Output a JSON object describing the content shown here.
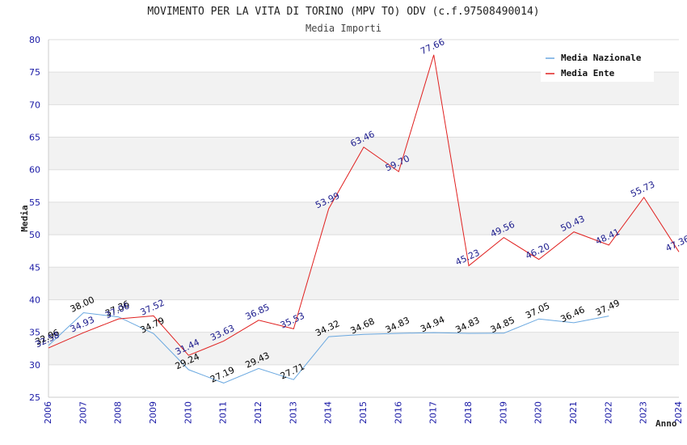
{
  "chart_data": {
    "type": "line",
    "title": "MOVIMENTO PER LA VITA DI TORINO (MPV TO) ODV (c.f.97508490014)",
    "subtitle": "Media Importi",
    "xlabel": "Anno",
    "ylabel": "Media",
    "ylim": [
      25,
      80
    ],
    "yticks": [
      "25",
      "30",
      "35",
      "40",
      "45",
      "50",
      "55",
      "60",
      "65",
      "70",
      "75",
      "80"
    ],
    "categories": [
      "2006",
      "2007",
      "2008",
      "2009",
      "2010",
      "2011",
      "2012",
      "2013",
      "2014",
      "2015",
      "2016",
      "2017",
      "2018",
      "2019",
      "2020",
      "2021",
      "2022",
      "2023",
      "2024"
    ],
    "grid": "horizontal bands",
    "legend_position": "top-right",
    "series": [
      {
        "name": "Media Nazionale",
        "color": "#6aa8e0",
        "label_color": "#000000",
        "values": [
          32.96,
          38.0,
          37.36,
          34.79,
          29.24,
          27.19,
          29.43,
          27.71,
          34.32,
          34.68,
          34.83,
          34.94,
          34.83,
          34.85,
          37.05,
          36.46,
          37.49,
          null,
          null
        ],
        "labels": [
          "32.96",
          "38.00",
          "37.36",
          "34.79",
          "29.24",
          "27.19",
          "29.43",
          "27.71",
          "34.32",
          "34.68",
          "34.83",
          "34.94",
          "34.83",
          "34.85",
          "37.05",
          "36.46",
          "37.49",
          "",
          ""
        ]
      },
      {
        "name": "Media Ente",
        "color": "#e0201f",
        "label_color": "#1a1a8c",
        "values": [
          32.58,
          34.93,
          37.06,
          37.52,
          31.44,
          33.63,
          36.85,
          35.53,
          53.99,
          63.46,
          59.7,
          77.66,
          45.23,
          49.56,
          46.2,
          50.43,
          48.41,
          55.73,
          47.36
        ],
        "labels": [
          "32.58",
          "34.93",
          "37.06",
          "37.52",
          "31.44",
          "33.63",
          "36.85",
          "35.53",
          "53.99",
          "63.46",
          "59.70",
          "77.66",
          "45.23",
          "49.56",
          "46.20",
          "50.43",
          "48.41",
          "55.73",
          "47.36"
        ]
      }
    ]
  }
}
